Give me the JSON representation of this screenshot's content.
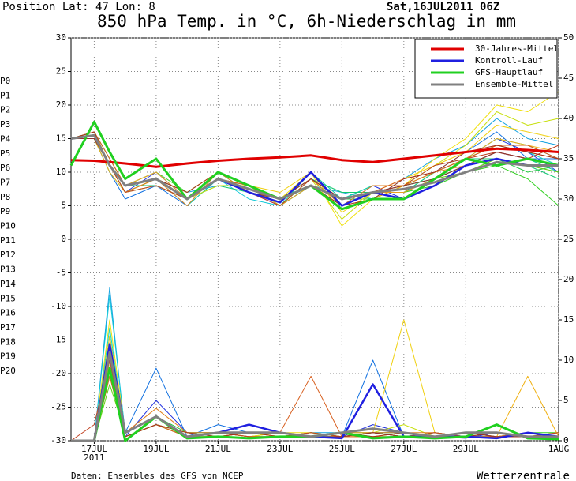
{
  "chart_data": {
    "type": "line",
    "header_left": "Position  Lat: 47 Lon: 8",
    "header_right": "Sat,16JUL2011 06Z",
    "title": "850 hPa Temp. in °C, 6h-Niederschlag in mm",
    "footer_left": "Daten: Ensembles des GFS von NCEP",
    "footer_right": "Wetterzentrale",
    "year_label": "2011",
    "x": [
      16.25,
      17,
      17.5,
      18,
      19,
      20,
      21,
      22,
      23,
      24,
      25,
      26,
      27,
      28,
      29,
      30,
      31,
      32
    ],
    "xlim": [
      16.25,
      32
    ],
    "xticks": [
      {
        "value": 17,
        "label": "17JUL"
      },
      {
        "value": 19,
        "label": "19JUL"
      },
      {
        "value": 21,
        "label": "21JUL"
      },
      {
        "value": 23,
        "label": "23JUL"
      },
      {
        "value": 25,
        "label": "25JUL"
      },
      {
        "value": 27,
        "label": "27JUL"
      },
      {
        "value": 29,
        "label": "29JUL"
      },
      {
        "value": 32,
        "label": "1AUG"
      }
    ],
    "ylim": [
      -30,
      30
    ],
    "yticks": [
      -30,
      -25,
      -20,
      -15,
      -10,
      -5,
      0,
      5,
      10,
      15,
      20,
      25,
      30
    ],
    "y2lim": [
      0,
      50
    ],
    "y2ticks": [
      0,
      5,
      10,
      15,
      20,
      25,
      30,
      35,
      40,
      45,
      50
    ],
    "grid": true,
    "legend": "upper right",
    "series": [
      {
        "name": "30-Jahres-Mittel",
        "color": "#e00000",
        "values": [
          11.8,
          11.7,
          11.5,
          11.3,
          10.8,
          11.3,
          11.7,
          12,
          12.2,
          12.5,
          11.8,
          11.5,
          12,
          12.5,
          13,
          13.5,
          13.3,
          13
        ]
      },
      {
        "name": "Kontroll-Lauf",
        "color": "#2020e0",
        "values": [
          15,
          15.5,
          11,
          8,
          9,
          6,
          9,
          7,
          5.5,
          10,
          5,
          7,
          6,
          8,
          11,
          12,
          11,
          11
        ],
        "precip": [
          0,
          0,
          12,
          1,
          3,
          0.5,
          1,
          2,
          1,
          0.5,
          0.3,
          7,
          0.5,
          0.5,
          0.5,
          0.3,
          1,
          0.5
        ]
      },
      {
        "name": "GFS-Hauptlauf",
        "color": "#20d020",
        "values": [
          11,
          17.5,
          13,
          9,
          12,
          6,
          10,
          8,
          6,
          8,
          4.5,
          6,
          6,
          9,
          12,
          11,
          12,
          11
        ],
        "precip": [
          0,
          0,
          9,
          0,
          3,
          0.3,
          0.5,
          0.3,
          0.5,
          0.5,
          1,
          0.3,
          0.5,
          0.3,
          0.5,
          2,
          0.3,
          0.2
        ]
      },
      {
        "name": "Ensemble-Mittel",
        "color": "#808080",
        "values": [
          15,
          15.5,
          11,
          8,
          9,
          6,
          9,
          7.5,
          6,
          8,
          6,
          7,
          7.5,
          8.5,
          10,
          11.5,
          11,
          11
        ],
        "precip": [
          0,
          0,
          11,
          1,
          3,
          0.5,
          1,
          1,
          1,
          0.5,
          1,
          1.5,
          1,
          0.5,
          1,
          1,
          0.5,
          0.5
        ]
      }
    ],
    "members": [
      {
        "name": "P0",
        "color": "#4400cc",
        "values": [
          15,
          15,
          11,
          8,
          9,
          6,
          9,
          7,
          5,
          9,
          6,
          7,
          7,
          9,
          11,
          13,
          12,
          11
        ],
        "precip": [
          0,
          0,
          12,
          1,
          3,
          0.5,
          1,
          2,
          1,
          0.5,
          0.3,
          7,
          0.5,
          0.5,
          0.5,
          0.3,
          1,
          0.5
        ]
      },
      {
        "name": "P1",
        "color": "#2030e0",
        "values": [
          15,
          16,
          11,
          7,
          10,
          6,
          10,
          8,
          6,
          8,
          5,
          8,
          6,
          9,
          12,
          15,
          13,
          10
        ],
        "precip": [
          0,
          0,
          10,
          0.5,
          5,
          1,
          0.5,
          1,
          0.5,
          1,
          0.5,
          2,
          1,
          0.5,
          0.3,
          1,
          0.5,
          0.5
        ]
      },
      {
        "name": "P2",
        "color": "#1070e0",
        "values": [
          15,
          15,
          10,
          6,
          8,
          5,
          9,
          7,
          6,
          9,
          6,
          7,
          8,
          10,
          13,
          16,
          12,
          12
        ],
        "precip": [
          0,
          0,
          13,
          1,
          9,
          0.5,
          2,
          1,
          1,
          0.5,
          0.5,
          10,
          0.5,
          1,
          0.5,
          0.5,
          1,
          0.5
        ]
      },
      {
        "name": "P3",
        "color": "#10a0e0",
        "values": [
          15,
          16,
          12,
          8,
          9,
          7,
          8,
          8,
          5,
          8,
          7,
          6,
          9,
          12,
          14,
          18,
          15,
          14
        ],
        "precip": [
          0,
          0,
          19,
          0.5,
          2,
          1,
          1,
          0.5,
          0.5,
          1,
          1,
          1,
          0.5,
          0.5,
          1,
          0.5,
          0.5,
          0.5
        ]
      },
      {
        "name": "P4",
        "color": "#10c8d8",
        "values": [
          15,
          15,
          11,
          7,
          8,
          6,
          9,
          6,
          5,
          9,
          6,
          8,
          8,
          11,
          12,
          15,
          14,
          12
        ],
        "precip": [
          0,
          0,
          18,
          1,
          3,
          0.5,
          1,
          1,
          0.5,
          0.5,
          0.5,
          1,
          1,
          0.5,
          0.5,
          0.5,
          0.5,
          0.5
        ]
      },
      {
        "name": "P5",
        "color": "#10d8c0",
        "values": [
          15,
          16,
          11,
          8,
          9,
          6,
          10,
          7,
          6,
          8,
          5,
          7,
          7,
          10,
          12,
          14,
          13,
          11
        ],
        "precip": [
          0,
          0,
          14,
          0.5,
          2,
          1,
          0.5,
          1,
          1,
          0.5,
          1,
          0.5,
          0.5,
          1,
          0.5,
          1,
          0.5,
          1
        ]
      },
      {
        "name": "P6",
        "color": "#10d0a0",
        "values": [
          15,
          15,
          10,
          7,
          9,
          5,
          9,
          8,
          5,
          10,
          6,
          8,
          8,
          9,
          11,
          13,
          12,
          10
        ],
        "precip": [
          0,
          0,
          11,
          1,
          3,
          0.5,
          1,
          0.5,
          0.5,
          1,
          0.5,
          1,
          0.5,
          0.5,
          1,
          0.5,
          1,
          0.5
        ]
      },
      {
        "name": "P7",
        "color": "#10c870",
        "values": [
          15,
          16,
          12,
          8,
          8,
          6,
          8,
          7,
          6,
          9,
          7,
          7,
          7,
          10,
          12,
          12,
          11,
          9
        ],
        "precip": [
          0,
          0,
          9,
          0.5,
          2,
          0.5,
          0.5,
          1,
          1,
          0.5,
          0.5,
          1,
          1,
          0.5,
          0.5,
          0.5,
          0.5,
          1
        ]
      },
      {
        "name": "P8",
        "color": "#20c840",
        "values": [
          15,
          15,
          11,
          7,
          9,
          6,
          9,
          8,
          5,
          8,
          6,
          6,
          8,
          9,
          11,
          12,
          10,
          11
        ],
        "precip": [
          0,
          0,
          8,
          1,
          3,
          1,
          1,
          0.5,
          0.5,
          0.5,
          1,
          0.5,
          0.5,
          1,
          0.5,
          1,
          0.5,
          0.5
        ]
      },
      {
        "name": "P9",
        "color": "#30d020",
        "values": [
          15,
          16,
          11,
          8,
          10,
          7,
          10,
          7,
          6,
          9,
          5,
          7,
          7,
          8,
          10,
          11,
          9,
          5
        ],
        "precip": [
          0,
          0,
          10,
          0.5,
          2,
          0.5,
          0.5,
          1,
          0.5,
          1,
          0.5,
          1,
          0.5,
          0.5,
          1,
          0.5,
          1,
          1
        ]
      },
      {
        "name": "P10",
        "color": "#60d010",
        "values": [
          15,
          15,
          11,
          8,
          9,
          6,
          9,
          7,
          6,
          8,
          6,
          7,
          7,
          9,
          10,
          12,
          11,
          10
        ],
        "precip": [
          0,
          0,
          7,
          1,
          3,
          0.5,
          1,
          0.5,
          1,
          0.5,
          0.5,
          1,
          0.5,
          0.5,
          0.5,
          1,
          0.5,
          0.5
        ]
      },
      {
        "name": "P11",
        "color": "#c8e010",
        "values": [
          15,
          16,
          12,
          8,
          9,
          6,
          8,
          8,
          5,
          9,
          3,
          7,
          8,
          11,
          14,
          19,
          17,
          18
        ],
        "precip": [
          0,
          0,
          12,
          0.5,
          2,
          1,
          0.5,
          1,
          0.5,
          0.5,
          1,
          1,
          2,
          0.5,
          0.5,
          0.5,
          1,
          0.5
        ]
      },
      {
        "name": "P12",
        "color": "#f0e010",
        "values": [
          15,
          15,
          11,
          7,
          8,
          6,
          9,
          7,
          6,
          10,
          2,
          6,
          8,
          12,
          15,
          20,
          19,
          22
        ],
        "precip": [
          0,
          0,
          15,
          1,
          3,
          0.5,
          1,
          0.5,
          1,
          1,
          0.5,
          0.5,
          1,
          0.5,
          1,
          0.5,
          0.5,
          1
        ]
      },
      {
        "name": "P13",
        "color": "#f0d010",
        "values": [
          15,
          16,
          11,
          8,
          9,
          7,
          10,
          8,
          7,
          10,
          4,
          7,
          9,
          11,
          13,
          17,
          16,
          15
        ],
        "precip": [
          0,
          0,
          13,
          0.5,
          2,
          1,
          0.5,
          1,
          0.5,
          0.5,
          0.5,
          1,
          15,
          1,
          0.5,
          0.5,
          1,
          0.5
        ]
      },
      {
        "name": "P14",
        "color": "#f0b010",
        "values": [
          15,
          15,
          10,
          7,
          9,
          6,
          9,
          7,
          6,
          9,
          5,
          6,
          8,
          10,
          12,
          15,
          14,
          13
        ],
        "precip": [
          0,
          0,
          10,
          1,
          3,
          0.5,
          1,
          1,
          0.5,
          1,
          0.5,
          0.5,
          1,
          0.5,
          0.5,
          0.5,
          8,
          0.5
        ]
      },
      {
        "name": "P15",
        "color": "#e8a020",
        "values": [
          15,
          16,
          11,
          8,
          10,
          6,
          9,
          8,
          5,
          8,
          6,
          7,
          7,
          9,
          12,
          14,
          13,
          12
        ],
        "precip": [
          0,
          0,
          9,
          0.5,
          2,
          0.5,
          0.5,
          1,
          1,
          0.5,
          1,
          1,
          0.5,
          0.5,
          1,
          0.5,
          0.5,
          1
        ]
      },
      {
        "name": "P16",
        "color": "#e08020",
        "values": [
          15,
          15,
          11,
          7,
          9,
          5,
          10,
          7,
          6,
          9,
          5,
          8,
          8,
          10,
          11,
          13,
          12,
          11
        ],
        "precip": [
          0,
          0,
          11,
          1,
          4,
          1,
          1,
          0.5,
          0.5,
          0.5,
          0.5,
          1,
          1,
          1,
          0.5,
          1,
          0.5,
          0.5
        ]
      },
      {
        "name": "P17",
        "color": "#d86020",
        "values": [
          15,
          16,
          12,
          8,
          9,
          6,
          9,
          8,
          6,
          8,
          6,
          7,
          9,
          10,
          12,
          14,
          14,
          12
        ],
        "precip": [
          0,
          0,
          8,
          0.5,
          2,
          0.5,
          0.5,
          1,
          1,
          8,
          0.5,
          0.5,
          0.5,
          0.5,
          1,
          0.5,
          1,
          0.5
        ]
      },
      {
        "name": "P18",
        "color": "#c04020",
        "values": [
          15,
          15,
          11,
          7,
          8,
          6,
          9,
          7,
          5,
          9,
          6,
          7,
          8,
          11,
          12,
          13,
          12,
          14
        ],
        "precip": [
          0,
          2,
          10,
          1,
          3,
          0.5,
          1,
          0.5,
          0.5,
          1,
          0.5,
          1,
          0.5,
          1,
          0.5,
          0.5,
          0.5,
          1
        ]
      },
      {
        "name": "P19",
        "color": "#a03020",
        "values": [
          15,
          16,
          11,
          8,
          9,
          7,
          10,
          8,
          6,
          8,
          5,
          6,
          9,
          10,
          13,
          14,
          13,
          12
        ],
        "precip": [
          0,
          0,
          12,
          0.5,
          2,
          1,
          0.5,
          1,
          0.5,
          0.5,
          1,
          0.5,
          1,
          0.5,
          0.5,
          1,
          0.5,
          0.5
        ]
      },
      {
        "name": "P20",
        "color": "#903030",
        "values": [
          15,
          15,
          11,
          8,
          9,
          6,
          9,
          7,
          6,
          9,
          6,
          7,
          8,
          9,
          11,
          13,
          12,
          11
        ],
        "precip": [
          0,
          0,
          9,
          1,
          3,
          0.5,
          1,
          1,
          1,
          0.5,
          0.5,
          1,
          0.5,
          0.5,
          1,
          0.5,
          0.5,
          0.5
        ]
      }
    ]
  }
}
